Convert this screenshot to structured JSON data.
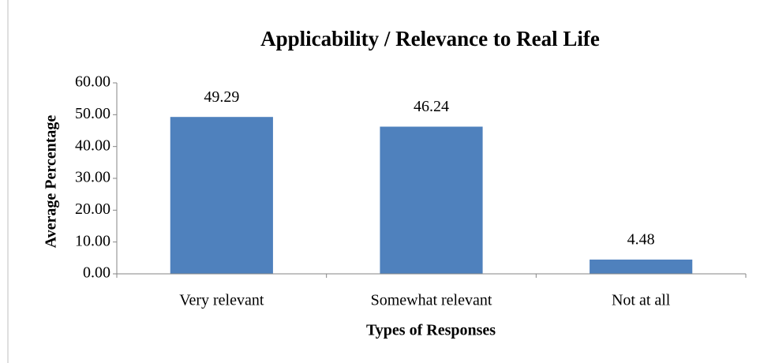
{
  "chart_data": {
    "type": "bar",
    "title": "Applicability / Relevance to Real Life",
    "x_label": "Types of Responses",
    "y_label": "Average Percentage",
    "categories": [
      "Very relevant",
      "Somewhat relevant",
      "Not at all"
    ],
    "values": [
      49.29,
      46.24,
      4.48
    ],
    "color": "#4f81bd",
    "ylim": [
      0,
      60
    ],
    "yticks": [
      {
        "value": 0,
        "label": "0.00"
      },
      {
        "value": 10,
        "label": "10.00"
      },
      {
        "value": 20,
        "label": "20.00"
      },
      {
        "value": 30,
        "label": "30.00"
      },
      {
        "value": 40,
        "label": "40.00"
      },
      {
        "value": 50,
        "label": "50.00"
      },
      {
        "value": 60,
        "label": "60.00"
      }
    ],
    "grid": false
  }
}
